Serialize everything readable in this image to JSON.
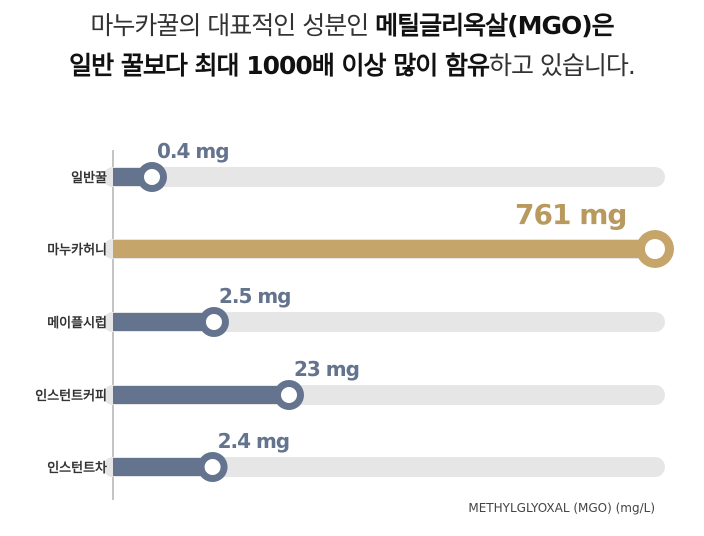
{
  "headline": {
    "line1_part1": "마누카꿀의 대표적인 성분인 ",
    "line1_part2": "메틸글리옥살(MGO)은",
    "line2_part1": "일반 꿀보다 최대 1000배 이상 많이 함유",
    "line2_part2": "하고 있습니다."
  },
  "colors": {
    "standard_bar": "#64748f",
    "highlight_bar": "#c6a56a",
    "track": "#e6e6e6",
    "standard_label": "#64748f",
    "highlight_label": "#b89a5f"
  },
  "chart_data": {
    "type": "bar",
    "orientation": "horizontal",
    "categories": [
      "일반꿀",
      "마누카허니",
      "메이플시럽",
      "인스턴트커피",
      "인스턴트차"
    ],
    "values": [
      0.4,
      761,
      2.5,
      23,
      2.4
    ],
    "value_labels": [
      "0.4 mg",
      "761 mg",
      "2.5 mg",
      "23 mg",
      "2.4 mg"
    ],
    "highlight_index": 1,
    "scale": "nonlinear",
    "unit_caption": "METHYLGLYOXAL (MGO) (mg/L)",
    "xlabel": "",
    "ylabel": "",
    "grid": false,
    "legend": "none"
  }
}
